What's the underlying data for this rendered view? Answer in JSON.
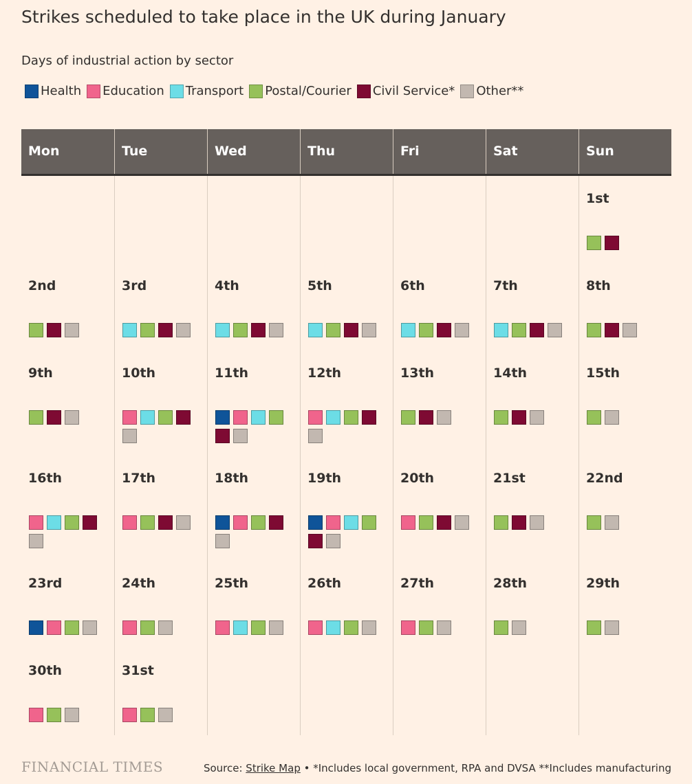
{
  "title": "Strikes scheduled to take place in the UK during January",
  "subtitle": "Days of industrial action by sector",
  "legend": [
    {
      "key": "health",
      "label": "Health",
      "color": "#0f5499"
    },
    {
      "key": "education",
      "label": "Education",
      "color": "#f0648c"
    },
    {
      "key": "transport",
      "label": "Transport",
      "color": "#6cdde6"
    },
    {
      "key": "postal",
      "label": "Postal/Courier",
      "color": "#96c15a"
    },
    {
      "key": "civil",
      "label": "Civil Service*",
      "color": "#7e0a33"
    },
    {
      "key": "other",
      "label": "Other**",
      "color": "#c2b8b0"
    }
  ],
  "weekdays": [
    "Mon",
    "Tue",
    "Wed",
    "Thu",
    "Fri",
    "Sat",
    "Sun"
  ],
  "chart_data": {
    "type": "calendar",
    "month": "January",
    "first_day_column": 6,
    "days": [
      {
        "label": "1st",
        "sectors": [
          "postal",
          "civil"
        ]
      },
      {
        "label": "2nd",
        "sectors": [
          "postal",
          "civil",
          "other"
        ]
      },
      {
        "label": "3rd",
        "sectors": [
          "transport",
          "postal",
          "civil",
          "other"
        ]
      },
      {
        "label": "4th",
        "sectors": [
          "transport",
          "postal",
          "civil",
          "other"
        ]
      },
      {
        "label": "5th",
        "sectors": [
          "transport",
          "postal",
          "civil",
          "other"
        ]
      },
      {
        "label": "6th",
        "sectors": [
          "transport",
          "postal",
          "civil",
          "other"
        ]
      },
      {
        "label": "7th",
        "sectors": [
          "transport",
          "postal",
          "civil",
          "other"
        ]
      },
      {
        "label": "8th",
        "sectors": [
          "postal",
          "civil",
          "other"
        ]
      },
      {
        "label": "9th",
        "sectors": [
          "postal",
          "civil",
          "other"
        ]
      },
      {
        "label": "10th",
        "sectors": [
          "education",
          "transport",
          "postal",
          "civil",
          "other"
        ]
      },
      {
        "label": "11th",
        "sectors": [
          "health",
          "education",
          "transport",
          "postal",
          "civil",
          "other"
        ]
      },
      {
        "label": "12th",
        "sectors": [
          "education",
          "transport",
          "postal",
          "civil",
          "other"
        ]
      },
      {
        "label": "13th",
        "sectors": [
          "postal",
          "civil",
          "other"
        ]
      },
      {
        "label": "14th",
        "sectors": [
          "postal",
          "civil",
          "other"
        ]
      },
      {
        "label": "15th",
        "sectors": [
          "postal",
          "other"
        ]
      },
      {
        "label": "16th",
        "sectors": [
          "education",
          "transport",
          "postal",
          "civil",
          "other"
        ]
      },
      {
        "label": "17th",
        "sectors": [
          "education",
          "postal",
          "civil",
          "other"
        ]
      },
      {
        "label": "18th",
        "sectors": [
          "health",
          "education",
          "postal",
          "civil",
          "other"
        ]
      },
      {
        "label": "19th",
        "sectors": [
          "health",
          "education",
          "transport",
          "postal",
          "civil",
          "other"
        ]
      },
      {
        "label": "20th",
        "sectors": [
          "education",
          "postal",
          "civil",
          "other"
        ]
      },
      {
        "label": "21st",
        "sectors": [
          "postal",
          "civil",
          "other"
        ]
      },
      {
        "label": "22nd",
        "sectors": [
          "postal",
          "other"
        ]
      },
      {
        "label": "23rd",
        "sectors": [
          "health",
          "education",
          "postal",
          "other"
        ]
      },
      {
        "label": "24th",
        "sectors": [
          "education",
          "postal",
          "other"
        ]
      },
      {
        "label": "25th",
        "sectors": [
          "education",
          "transport",
          "postal",
          "other"
        ]
      },
      {
        "label": "26th",
        "sectors": [
          "education",
          "transport",
          "postal",
          "other"
        ]
      },
      {
        "label": "27th",
        "sectors": [
          "education",
          "postal",
          "other"
        ]
      },
      {
        "label": "28th",
        "sectors": [
          "postal",
          "other"
        ]
      },
      {
        "label": "29th",
        "sectors": [
          "postal",
          "other"
        ]
      },
      {
        "label": "30th",
        "sectors": [
          "education",
          "postal",
          "other"
        ]
      },
      {
        "label": "31st",
        "sectors": [
          "education",
          "postal",
          "other"
        ]
      }
    ]
  },
  "footer": {
    "logo": "FINANCIAL TIMES",
    "source_prefix": "Source: ",
    "source_link": "Strike Map",
    "source_notes": " • *Includes local government, RPA and DVSA **Includes manufacturing"
  }
}
